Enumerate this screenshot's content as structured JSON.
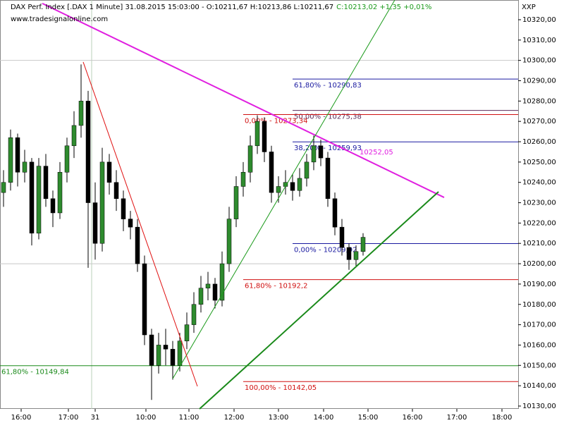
{
  "chart_data": {
    "type": "candlestick",
    "title": "DAX Perf. Index [.DAX  1 Minute] 31.08.2015 15:03:00 - O:10211,67 H:10213,86 L:10211,67",
    "title_change": "C:10213,02 +1,35 +0,01%",
    "subtitle": "www.tradesignalonline.com",
    "axis_label": "XXP",
    "up_color": "#2e8b2e",
    "down_color": "#000000",
    "xlim": [
      0,
      73.5
    ],
    "xticks": [
      {
        "value": 3.0,
        "label": "16:00"
      },
      {
        "value": 9.7,
        "label": "17:00"
      },
      {
        "value": 13.5,
        "label": "31"
      },
      {
        "value": 20.7,
        "label": "10:00"
      },
      {
        "value": 26.8,
        "label": "11:00"
      },
      {
        "value": 33.2,
        "label": "12:00"
      },
      {
        "value": 39.5,
        "label": "13:00"
      },
      {
        "value": 45.9,
        "label": "14:00"
      },
      {
        "value": 52.2,
        "label": "15:00"
      },
      {
        "value": 58.5,
        "label": "16:00"
      },
      {
        "value": 64.8,
        "label": "17:00"
      },
      {
        "value": 71.2,
        "label": "18:00"
      }
    ],
    "ylim": [
      10128.6,
      10329.7
    ],
    "yticks": [
      {
        "value": 10130,
        "label": "10130,00"
      },
      {
        "value": 10140,
        "label": "10140,00"
      },
      {
        "value": 10150,
        "label": "10150,00"
      },
      {
        "value": 10160,
        "label": "10160,00"
      },
      {
        "value": 10170,
        "label": "10170,00"
      },
      {
        "value": 10180,
        "label": "10180,00"
      },
      {
        "value": 10190,
        "label": "10190,00"
      },
      {
        "value": 10200,
        "label": "10200,00"
      },
      {
        "value": 10210,
        "label": "10210,00"
      },
      {
        "value": 10220,
        "label": "10220,00"
      },
      {
        "value": 10230,
        "label": "10230,00"
      },
      {
        "value": 10240,
        "label": "10240,00"
      },
      {
        "value": 10250,
        "label": "10250,00"
      },
      {
        "value": 10260,
        "label": "10260,00"
      },
      {
        "value": 10270,
        "label": "10270,00"
      },
      {
        "value": 10280,
        "label": "10280,00"
      },
      {
        "value": 10290,
        "label": "10290,00"
      },
      {
        "value": 10300,
        "label": "10300,00"
      },
      {
        "value": 10310,
        "label": "10310,00"
      },
      {
        "value": 10320,
        "label": "10320,00"
      }
    ],
    "day_break": 13.0,
    "hlines": [
      10300,
      10200
    ],
    "candles": [
      {
        "o": 10235,
        "h": 10246,
        "l": 10228,
        "c": 10240
      },
      {
        "o": 10240,
        "h": 10266,
        "l": 10236,
        "c": 10262
      },
      {
        "o": 10262,
        "h": 10264,
        "l": 10238,
        "c": 10245
      },
      {
        "o": 10245,
        "h": 10256,
        "l": 10240,
        "c": 10250
      },
      {
        "o": 10250,
        "h": 10252,
        "l": 10209,
        "c": 10215
      },
      {
        "o": 10215,
        "h": 10252,
        "l": 10212,
        "c": 10248
      },
      {
        "o": 10248,
        "h": 10254,
        "l": 10228,
        "c": 10232
      },
      {
        "o": 10232,
        "h": 10236,
        "l": 10218,
        "c": 10225
      },
      {
        "o": 10225,
        "h": 10250,
        "l": 10222,
        "c": 10245
      },
      {
        "o": 10245,
        "h": 10262,
        "l": 10240,
        "c": 10258
      },
      {
        "o": 10258,
        "h": 10275,
        "l": 10252,
        "c": 10268
      },
      {
        "o": 10268,
        "h": 10298,
        "l": 10262,
        "c": 10280
      },
      {
        "o": 10280,
        "h": 10285,
        "l": 10198,
        "c": 10230
      },
      {
        "o": 10230,
        "h": 10240,
        "l": 10202,
        "c": 10210
      },
      {
        "o": 10210,
        "h": 10257,
        "l": 10206,
        "c": 10250
      },
      {
        "o": 10250,
        "h": 10254,
        "l": 10234,
        "c": 10240
      },
      {
        "o": 10240,
        "h": 10246,
        "l": 10226,
        "c": 10232
      },
      {
        "o": 10232,
        "h": 10236,
        "l": 10216,
        "c": 10222
      },
      {
        "o": 10222,
        "h": 10226,
        "l": 10212,
        "c": 10218
      },
      {
        "o": 10218,
        "h": 10222,
        "l": 10196,
        "c": 10200
      },
      {
        "o": 10200,
        "h": 10204,
        "l": 10160,
        "c": 10165
      },
      {
        "o": 10165,
        "h": 10168,
        "l": 10133,
        "c": 10150
      },
      {
        "o": 10150,
        "h": 10166,
        "l": 10146,
        "c": 10160
      },
      {
        "o": 10160,
        "h": 10168,
        "l": 10150,
        "c": 10158
      },
      {
        "o": 10158,
        "h": 10162,
        "l": 10143,
        "c": 10150
      },
      {
        "o": 10150,
        "h": 10166,
        "l": 10147,
        "c": 10162
      },
      {
        "o": 10162,
        "h": 10176,
        "l": 10158,
        "c": 10170
      },
      {
        "o": 10170,
        "h": 10186,
        "l": 10166,
        "c": 10180
      },
      {
        "o": 10180,
        "h": 10194,
        "l": 10176,
        "c": 10188
      },
      {
        "o": 10188,
        "h": 10196,
        "l": 10182,
        "c": 10190
      },
      {
        "o": 10190,
        "h": 10193,
        "l": 10178,
        "c": 10182
      },
      {
        "o": 10182,
        "h": 10206,
        "l": 10179,
        "c": 10200
      },
      {
        "o": 10200,
        "h": 10228,
        "l": 10196,
        "c": 10222
      },
      {
        "o": 10222,
        "h": 10243,
        "l": 10218,
        "c": 10238
      },
      {
        "o": 10238,
        "h": 10250,
        "l": 10233,
        "c": 10245
      },
      {
        "o": 10245,
        "h": 10263,
        "l": 10240,
        "c": 10258
      },
      {
        "o": 10258,
        "h": 10273,
        "l": 10254,
        "c": 10270
      },
      {
        "o": 10270,
        "h": 10272,
        "l": 10250,
        "c": 10255
      },
      {
        "o": 10255,
        "h": 10258,
        "l": 10230,
        "c": 10235
      },
      {
        "o": 10235,
        "h": 10243,
        "l": 10230,
        "c": 10238
      },
      {
        "o": 10238,
        "h": 10246,
        "l": 10234,
        "c": 10240
      },
      {
        "o": 10240,
        "h": 10244,
        "l": 10231,
        "c": 10236
      },
      {
        "o": 10236,
        "h": 10247,
        "l": 10233,
        "c": 10242
      },
      {
        "o": 10242,
        "h": 10254,
        "l": 10238,
        "c": 10250
      },
      {
        "o": 10250,
        "h": 10263,
        "l": 10246,
        "c": 10258
      },
      {
        "o": 10258,
        "h": 10261,
        "l": 10248,
        "c": 10252
      },
      {
        "o": 10252,
        "h": 10255,
        "l": 10228,
        "c": 10232
      },
      {
        "o": 10232,
        "h": 10235,
        "l": 10214,
        "c": 10218
      },
      {
        "o": 10218,
        "h": 10222,
        "l": 10204,
        "c": 10208
      },
      {
        "o": 10208,
        "h": 10210,
        "l": 10197,
        "c": 10202
      },
      {
        "o": 10202,
        "h": 10209,
        "l": 10199,
        "c": 10206
      },
      {
        "o": 10206,
        "h": 10215,
        "l": 10204,
        "c": 10213
      }
    ],
    "levels": [
      {
        "value": 10290.83,
        "label": "61,80% - 10290,83",
        "color": "#1a1aa0",
        "x0": 41.5
      },
      {
        "value": 10275.38,
        "label": "50,00% - 10275,38",
        "color": "#5a2a5a",
        "x0": 41.5
      },
      {
        "value": 10273.34,
        "label": "0,00% - 10273,34",
        "color": "#d01010",
        "x0": 34.5
      },
      {
        "value": 10259.93,
        "label": "38,20% - 10259,93",
        "color": "#1a1aa0",
        "x0": 41.5
      },
      {
        "value": 10209.92,
        "label": "0,00% - 10209,92",
        "color": "#1a1aa0",
        "x0": 41.5
      },
      {
        "value": 10192.2,
        "label": "61,80% - 10192,2",
        "color": "#d01010",
        "x0": 34.5
      },
      {
        "value": 10149.84,
        "label": "61,80% - 10149,84",
        "color": "#1a8a1a",
        "x0": 0
      },
      {
        "value": 10142.05,
        "label": "100,00% - 10142,05",
        "color": "#d01010",
        "x0": 34.5
      }
    ],
    "trendlines": [
      {
        "color": "#e020e0",
        "width": 2,
        "x": [
          6.0,
          63.0
        ],
        "y": [
          10328.0,
          10232.6
        ],
        "label": "10252,05"
      },
      {
        "color": "#1a9a1a",
        "width": 1,
        "x": [
          24.5,
          56.0
        ],
        "y": [
          10143.5,
          10329.7
        ]
      },
      {
        "color": "#1a8a1a",
        "width": 2,
        "x": [
          28.3,
          62.2
        ],
        "y": [
          10128.6,
          10235.4
        ]
      },
      {
        "color": "#e01010",
        "width": 1,
        "x": [
          11.8,
          28.0
        ],
        "y": [
          10299.2,
          10139.7
        ]
      }
    ]
  }
}
